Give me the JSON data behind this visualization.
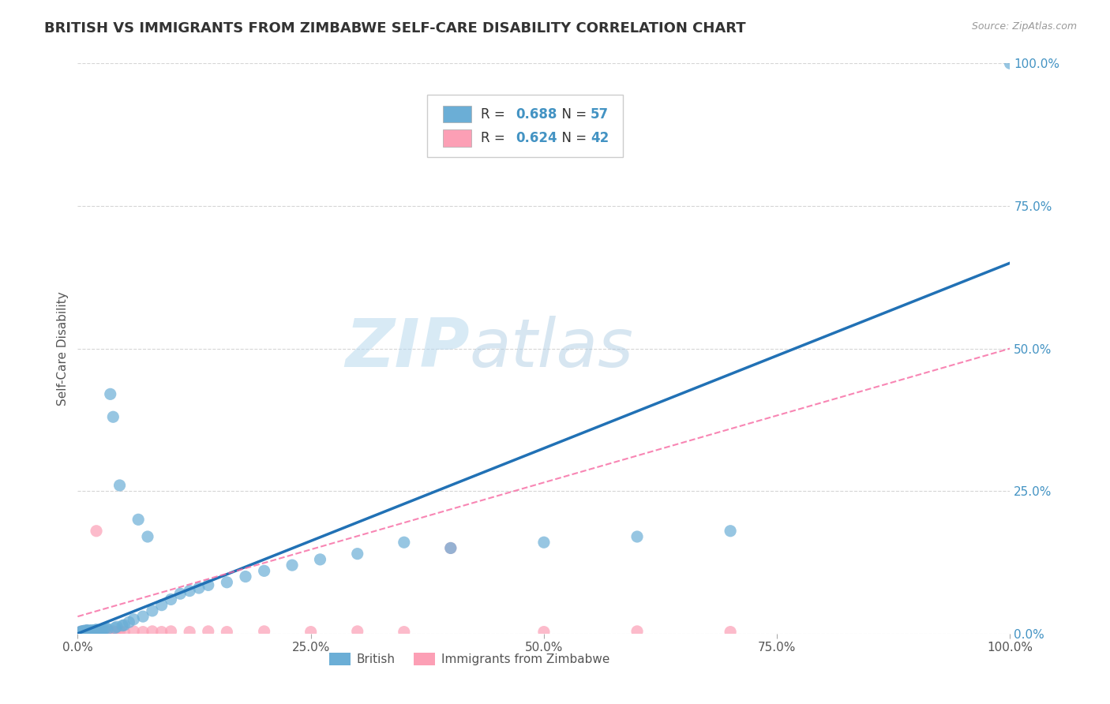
{
  "title": "BRITISH VS IMMIGRANTS FROM ZIMBABWE SELF-CARE DISABILITY CORRELATION CHART",
  "source": "Source: ZipAtlas.com",
  "ylabel": "Self-Care Disability",
  "xlabel": "",
  "xlim": [
    0,
    1.0
  ],
  "ylim": [
    0,
    1.0
  ],
  "xticks": [
    0,
    0.25,
    0.5,
    0.75,
    1.0
  ],
  "yticks": [
    0,
    0.25,
    0.5,
    0.75,
    1.0
  ],
  "xtick_labels": [
    "0.0%",
    "25.0%",
    "50.0%",
    "75.0%",
    "100.0%"
  ],
  "ytick_labels": [
    "0.0%",
    "25.0%",
    "50.0%",
    "75.0%",
    "100.0%"
  ],
  "british_color": "#6baed6",
  "zimbabwe_color": "#fc9fb5",
  "british_R": 0.688,
  "british_N": 57,
  "zimbabwe_R": 0.624,
  "zimbabwe_N": 42,
  "british_line_color": "#2171b5",
  "zimbabwe_line_color": "#f768a1",
  "tick_label_color": "#4393c3",
  "legend_label_british": "British",
  "legend_label_zimbabwe": "Immigrants from Zimbabwe",
  "watermark_zip": "ZIP",
  "watermark_atlas": "atlas",
  "background_color": "#ffffff",
  "grid_color": "#cccccc",
  "title_fontsize": 13,
  "axis_label_fontsize": 11,
  "tick_label_fontsize": 11,
  "british_x": [
    0.003,
    0.004,
    0.005,
    0.006,
    0.007,
    0.008,
    0.009,
    0.01,
    0.01,
    0.011,
    0.012,
    0.013,
    0.014,
    0.015,
    0.015,
    0.016,
    0.017,
    0.018,
    0.019,
    0.02,
    0.022,
    0.024,
    0.026,
    0.028,
    0.03,
    0.032,
    0.035,
    0.038,
    0.04,
    0.042,
    0.045,
    0.048,
    0.05,
    0.055,
    0.06,
    0.065,
    0.07,
    0.075,
    0.08,
    0.09,
    0.1,
    0.11,
    0.12,
    0.13,
    0.14,
    0.16,
    0.18,
    0.2,
    0.23,
    0.26,
    0.3,
    0.35,
    0.4,
    0.5,
    0.6,
    0.7,
    1.0
  ],
  "british_y": [
    0.003,
    0.004,
    0.003,
    0.004,
    0.005,
    0.003,
    0.004,
    0.005,
    0.006,
    0.004,
    0.003,
    0.005,
    0.004,
    0.003,
    0.006,
    0.004,
    0.005,
    0.003,
    0.006,
    0.007,
    0.005,
    0.006,
    0.007,
    0.008,
    0.01,
    0.008,
    0.42,
    0.38,
    0.01,
    0.012,
    0.26,
    0.014,
    0.015,
    0.02,
    0.025,
    0.2,
    0.03,
    0.17,
    0.04,
    0.05,
    0.06,
    0.07,
    0.075,
    0.08,
    0.085,
    0.09,
    0.1,
    0.11,
    0.12,
    0.13,
    0.14,
    0.16,
    0.15,
    0.16,
    0.17,
    0.18,
    1.0
  ],
  "zimbabwe_x": [
    0.003,
    0.004,
    0.005,
    0.006,
    0.007,
    0.008,
    0.009,
    0.01,
    0.011,
    0.012,
    0.013,
    0.014,
    0.015,
    0.016,
    0.018,
    0.02,
    0.022,
    0.025,
    0.028,
    0.03,
    0.032,
    0.035,
    0.038,
    0.04,
    0.045,
    0.05,
    0.06,
    0.07,
    0.08,
    0.09,
    0.1,
    0.12,
    0.14,
    0.16,
    0.2,
    0.25,
    0.3,
    0.35,
    0.4,
    0.5,
    0.6,
    0.7
  ],
  "zimbabwe_y": [
    0.003,
    0.003,
    0.004,
    0.003,
    0.004,
    0.003,
    0.004,
    0.005,
    0.003,
    0.004,
    0.003,
    0.004,
    0.003,
    0.004,
    0.003,
    0.18,
    0.004,
    0.003,
    0.004,
    0.003,
    0.004,
    0.003,
    0.004,
    0.003,
    0.004,
    0.003,
    0.004,
    0.003,
    0.004,
    0.003,
    0.004,
    0.003,
    0.004,
    0.003,
    0.004,
    0.003,
    0.004,
    0.003,
    0.15,
    0.003,
    0.004,
    0.003
  ],
  "british_line_x0": 0.0,
  "british_line_x1": 1.0,
  "british_line_y0": 0.0,
  "british_line_y1": 0.65,
  "zimbabwe_line_x0": 0.0,
  "zimbabwe_line_x1": 1.0,
  "zimbabwe_line_y0": 0.03,
  "zimbabwe_line_y1": 0.5
}
